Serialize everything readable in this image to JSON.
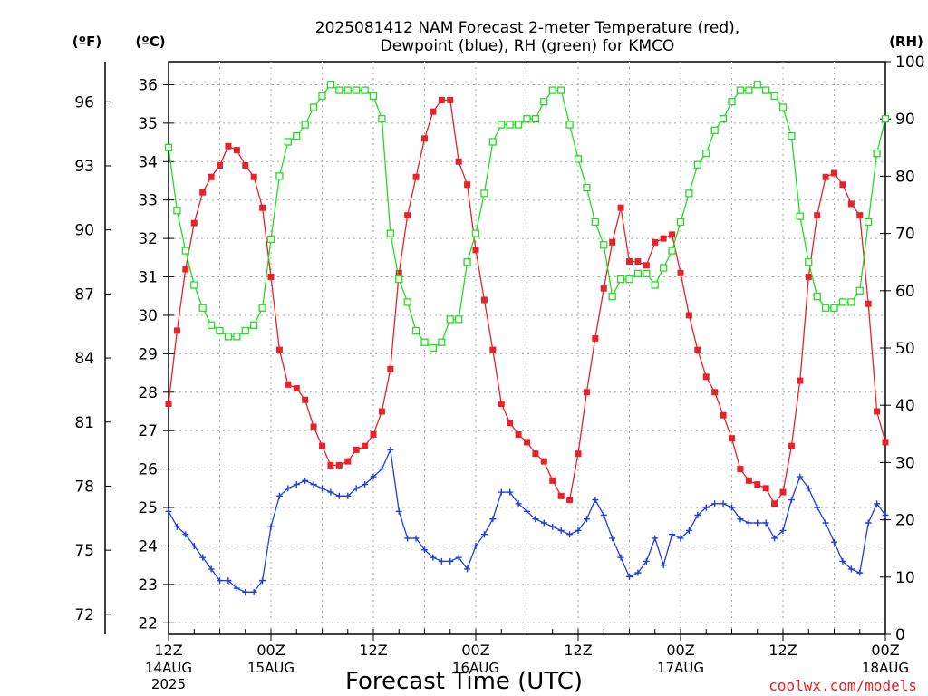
{
  "chart_data": {
    "type": "line",
    "title": "2025081412 NAM Forecast 2-meter Temperature (red),\nDewpoint (blue), RH (green) for KMCO",
    "xlabel": "Forecast Time (UTC)",
    "credit": "coolwx.com/models",
    "axes": {
      "left_f": {
        "label": "(ºF)",
        "ticks": [
          72,
          75,
          78,
          81,
          84,
          87,
          90,
          93,
          96
        ]
      },
      "left_c": {
        "label": "(ºC)",
        "ticks": [
          22,
          23,
          24,
          25,
          26,
          27,
          28,
          29,
          30,
          31,
          32,
          33,
          34,
          35,
          36
        ],
        "ylim": [
          21.7,
          36.6
        ]
      },
      "right_rh": {
        "label": "(RH)",
        "ticks": [
          0,
          10,
          20,
          30,
          40,
          50,
          60,
          70,
          80,
          90,
          100
        ],
        "ylim": [
          0,
          100
        ]
      }
    },
    "x_range_hours": [
      0,
      84
    ],
    "x_ticks": [
      {
        "hour": 0,
        "label": "12Z",
        "sub": "14AUG",
        "sub2": "2025"
      },
      {
        "hour": 12,
        "label": "00Z",
        "sub": "15AUG",
        "sub2": ""
      },
      {
        "hour": 24,
        "label": "12Z",
        "sub": "",
        "sub2": ""
      },
      {
        "hour": 36,
        "label": "00Z",
        "sub": "16AUG",
        "sub2": ""
      },
      {
        "hour": 48,
        "label": "12Z",
        "sub": "",
        "sub2": ""
      },
      {
        "hour": 60,
        "label": "00Z",
        "sub": "17AUG",
        "sub2": ""
      },
      {
        "hour": 72,
        "label": "12Z",
        "sub": "",
        "sub2": ""
      },
      {
        "hour": 84,
        "label": "00Z",
        "sub": "18AUG",
        "sub2": ""
      }
    ],
    "grid": true,
    "series": [
      {
        "name": "Temperature",
        "color": "#e8222a",
        "marker": "filled-square",
        "units": "°C",
        "values": [
          27.7,
          29.6,
          31.2,
          32.4,
          33.2,
          33.6,
          33.9,
          34.4,
          34.3,
          33.9,
          33.6,
          32.8,
          31.0,
          29.1,
          28.2,
          28.1,
          27.8,
          27.1,
          26.6,
          26.1,
          26.1,
          26.2,
          26.5,
          26.6,
          26.9,
          27.5,
          28.6,
          31.1,
          32.6,
          33.6,
          34.6,
          35.3,
          35.6,
          35.6,
          34.0,
          33.4,
          31.7,
          30.4,
          29.1,
          27.7,
          27.2,
          26.9,
          26.7,
          26.4,
          26.2,
          25.7,
          25.3,
          25.2,
          26.4,
          28.0,
          29.4,
          30.7,
          31.9,
          32.8,
          31.4,
          31.4,
          31.3,
          31.9,
          32.0,
          32.1,
          31.1,
          30.0,
          29.1,
          28.4,
          28.0,
          27.4,
          26.8,
          26.0,
          25.7,
          25.6,
          25.5,
          25.1,
          25.4,
          26.6,
          28.3,
          31.0,
          32.6,
          33.6,
          33.7,
          33.4,
          32.9,
          32.6,
          30.3,
          27.5,
          26.7
        ]
      },
      {
        "name": "Dewpoint",
        "color": "#1f3fe0",
        "marker": "plus",
        "units": "°C",
        "values": [
          24.9,
          24.5,
          24.3,
          24.0,
          23.7,
          23.4,
          23.1,
          23.1,
          22.9,
          22.8,
          22.8,
          23.1,
          24.5,
          25.3,
          25.5,
          25.6,
          25.7,
          25.6,
          25.5,
          25.4,
          25.3,
          25.3,
          25.5,
          25.6,
          25.8,
          26.0,
          26.5,
          24.9,
          24.2,
          24.2,
          23.9,
          23.7,
          23.6,
          23.6,
          23.7,
          23.4,
          24.0,
          24.3,
          24.7,
          25.4,
          25.4,
          25.1,
          24.9,
          24.7,
          24.6,
          24.5,
          24.4,
          24.3,
          24.4,
          24.7,
          25.2,
          24.8,
          24.2,
          23.7,
          23.2,
          23.3,
          23.6,
          24.2,
          23.5,
          24.3,
          24.2,
          24.4,
          24.8,
          25.0,
          25.1,
          25.1,
          25.0,
          24.7,
          24.6,
          24.6,
          24.6,
          24.2,
          24.4,
          25.2,
          25.8,
          25.5,
          25.0,
          24.6,
          24.1,
          23.6,
          23.4,
          23.3,
          24.6,
          25.1,
          24.8
        ]
      },
      {
        "name": "RH",
        "color": "#22dd22",
        "marker": "open-square",
        "units": "%",
        "values": [
          85,
          74,
          67,
          61,
          57,
          54,
          53,
          52,
          52,
          53,
          54,
          57,
          69,
          80,
          86,
          87,
          89,
          92,
          94,
          96,
          95,
          95,
          95,
          95,
          94,
          90,
          70,
          62,
          58,
          53,
          51,
          50,
          51,
          55,
          55,
          65,
          70,
          77,
          86,
          89,
          89,
          89,
          90,
          90,
          93,
          95,
          95,
          89,
          83,
          78,
          72,
          68,
          59,
          62,
          62,
          63,
          63,
          61,
          64,
          67,
          72,
          77,
          82,
          84,
          88,
          90,
          93,
          95,
          95,
          96,
          95,
          94,
          92,
          87,
          73,
          65,
          59,
          57,
          57,
          58,
          58,
          60,
          72,
          84,
          90
        ]
      }
    ]
  }
}
